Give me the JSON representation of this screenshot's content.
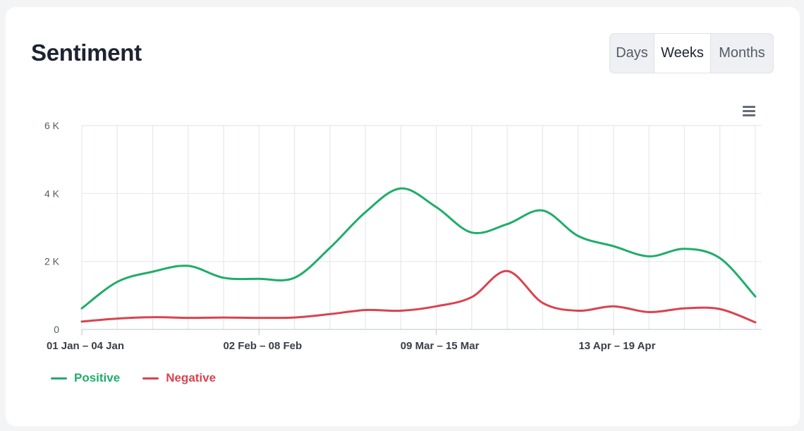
{
  "header": {
    "title": "Sentiment"
  },
  "range_selector": {
    "options": [
      "Days",
      "Weeks",
      "Months"
    ],
    "selected": "Weeks"
  },
  "menu": {
    "icon": "hamburger-menu-icon"
  },
  "colors": {
    "positive": "#1fad69",
    "negative": "#d9434f",
    "grid": "#e6e8eb"
  },
  "chart_data": {
    "type": "line",
    "title": "Sentiment",
    "xlabel": "",
    "ylabel": "",
    "ylim": [
      0,
      6000
    ],
    "yticks": [
      0,
      2000,
      4000,
      6000
    ],
    "ytick_labels": [
      "0",
      "2 K",
      "4 K",
      "6 K"
    ],
    "x": [
      1,
      2,
      3,
      4,
      5,
      6,
      7,
      8,
      9,
      10,
      11,
      12,
      13,
      14,
      15,
      16,
      17,
      18,
      19,
      20
    ],
    "xtick_labels": [
      {
        "at": 1,
        "label": "01 Jan – 04 Jan"
      },
      {
        "at": 6,
        "label": "02 Feb – 08 Feb"
      },
      {
        "at": 11,
        "label": "09 Mar – 15 Mar"
      },
      {
        "at": 16,
        "label": "13 Apr – 19 Apr"
      }
    ],
    "series": [
      {
        "name": "Positive",
        "values": [
          620,
          1400,
          1700,
          1870,
          1520,
          1490,
          1520,
          2400,
          3450,
          4150,
          3600,
          2850,
          3100,
          3500,
          2750,
          2450,
          2150,
          2370,
          2100,
          970
        ]
      },
      {
        "name": "Negative",
        "values": [
          230,
          320,
          360,
          340,
          350,
          340,
          350,
          450,
          570,
          550,
          680,
          950,
          1720,
          780,
          550,
          680,
          510,
          620,
          600,
          210
        ]
      }
    ],
    "legend": [
      "Positive",
      "Negative"
    ],
    "legend_position": "bottom-left",
    "grid": true
  }
}
